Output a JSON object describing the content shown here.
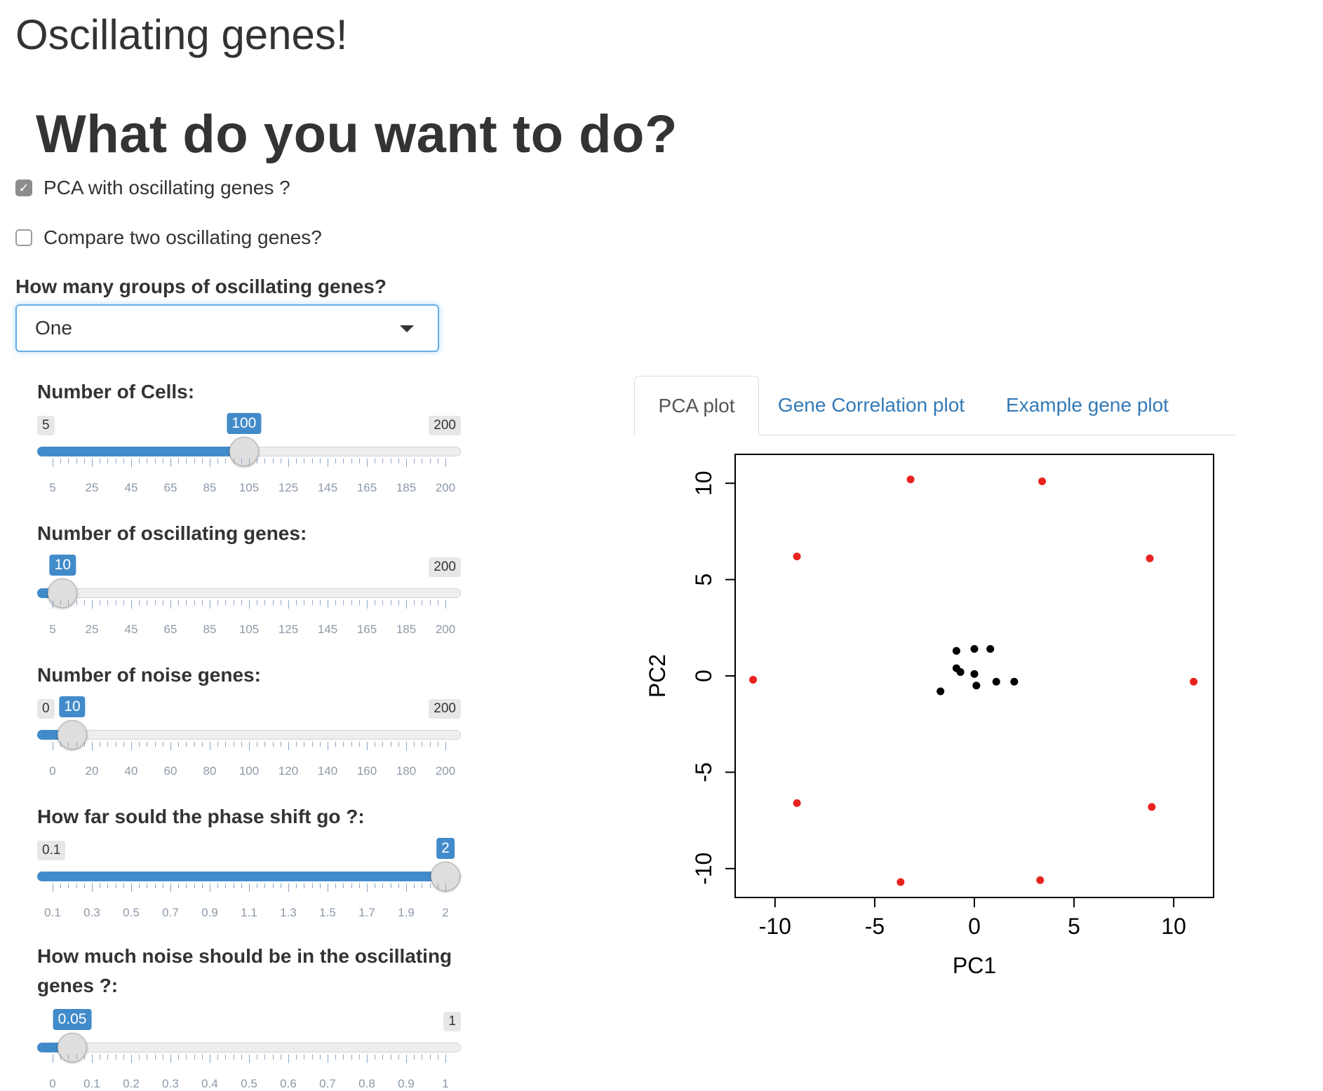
{
  "page": {
    "title": "Oscillating genes!",
    "section_title": "What do you want to do?"
  },
  "options": {
    "pca": {
      "label": "PCA with oscillating genes ?",
      "checked": true
    },
    "compare": {
      "label": "Compare two oscillating genes?",
      "checked": false
    }
  },
  "groups": {
    "label": "How many groups of oscillating genes?",
    "selected": "One"
  },
  "sliders": [
    {
      "id": "cells",
      "label": "Number of Cells:",
      "min": 5,
      "max": 200,
      "value": 100,
      "min_label": "5",
      "max_label": "200",
      "value_label": "100",
      "ticks": [
        "5",
        "25",
        "45",
        "65",
        "85",
        "105",
        "125",
        "145",
        "165",
        "185",
        "200"
      ]
    },
    {
      "id": "osc",
      "label": "Number of oscillating genes:",
      "min": 5,
      "max": 200,
      "value": 10,
      "min_label": "",
      "max_label": "200",
      "value_label": "10",
      "ticks": [
        "5",
        "25",
        "45",
        "65",
        "85",
        "105",
        "125",
        "145",
        "165",
        "185",
        "200"
      ]
    },
    {
      "id": "noise",
      "label": "Number of noise genes:",
      "min": 0,
      "max": 200,
      "value": 10,
      "min_label": "0",
      "max_label": "200",
      "value_label": "10",
      "ticks": [
        "0",
        "20",
        "40",
        "60",
        "80",
        "100",
        "120",
        "140",
        "160",
        "180",
        "200"
      ]
    },
    {
      "id": "phase",
      "label": "How far sould the phase shift go ?:",
      "min": 0.1,
      "max": 2,
      "value": 2,
      "min_label": "0.1",
      "max_label": "",
      "value_label": "2",
      "ticks": [
        "0.1",
        "0.3",
        "0.5",
        "0.7",
        "0.9",
        "1.1",
        "1.3",
        "1.5",
        "1.7",
        "1.9",
        "2"
      ]
    },
    {
      "id": "osc_noise",
      "label": "How much noise should be in the oscillating genes ?:",
      "min": 0,
      "max": 1,
      "value": 0.05,
      "min_label": "",
      "max_label": "1",
      "value_label": "0.05",
      "ticks": [
        "0",
        "0.1",
        "0.2",
        "0.3",
        "0.4",
        "0.5",
        "0.6",
        "0.7",
        "0.8",
        "0.9",
        "1"
      ]
    }
  ],
  "tabs": [
    "PCA plot",
    "Gene Correlation plot",
    "Example gene plot"
  ],
  "colors": {
    "accent": "#428bca",
    "link": "#337ab7",
    "point_red": "#e8231f",
    "point_black": "#000000"
  },
  "chart_data": {
    "type": "scatter",
    "xlabel": "PC1",
    "ylabel": "PC2",
    "xlim": [
      -12,
      12
    ],
    "ylim": [
      -11.5,
      11.5
    ],
    "xticks": [
      "-10",
      "-5",
      "0",
      "5",
      "10"
    ],
    "yticks": [
      "-10",
      "-5",
      "0",
      "5",
      "10"
    ],
    "grid": false,
    "series": [
      {
        "color": "#e8231f",
        "points": [
          [
            -3.2,
            10.2
          ],
          [
            3.4,
            10.1
          ],
          [
            -8.9,
            6.2
          ],
          [
            8.8,
            6.1
          ],
          [
            -11.1,
            -0.2
          ],
          [
            11.0,
            -0.3
          ],
          [
            -8.9,
            -6.6
          ],
          [
            8.9,
            -6.8
          ],
          [
            -3.7,
            -10.7
          ],
          [
            3.3,
            -10.6
          ]
        ]
      },
      {
        "color": "#000000",
        "points": [
          [
            -0.9,
            1.3
          ],
          [
            0.0,
            1.4
          ],
          [
            0.8,
            1.4
          ],
          [
            -0.9,
            0.4
          ],
          [
            -0.7,
            0.2
          ],
          [
            0.0,
            0.1
          ],
          [
            0.1,
            -0.5
          ],
          [
            1.1,
            -0.3
          ],
          [
            2.0,
            -0.3
          ],
          [
            -1.7,
            -0.8
          ]
        ]
      }
    ]
  }
}
